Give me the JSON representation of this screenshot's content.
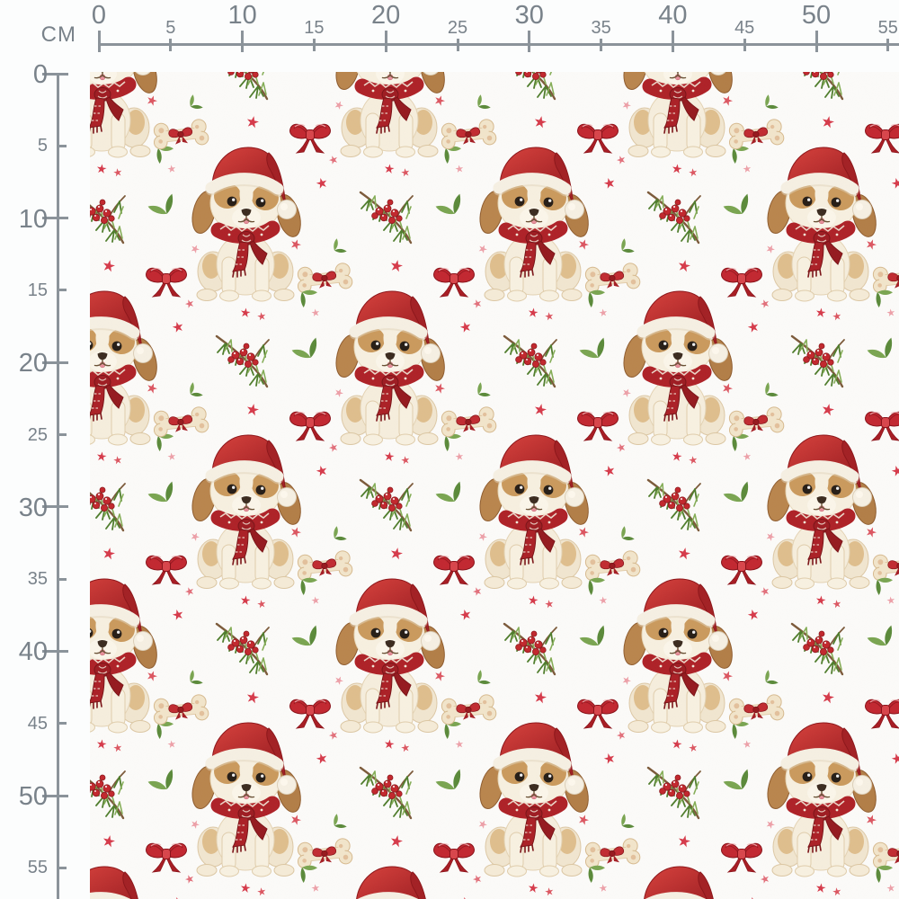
{
  "ruler": {
    "unit_label": "CM",
    "horizontal": {
      "labels": [
        0,
        5,
        10,
        15,
        20,
        25,
        30,
        35,
        40,
        45,
        50,
        55
      ]
    },
    "vertical": {
      "labels": [
        0,
        5,
        10,
        15,
        20,
        25,
        30,
        35,
        40,
        45,
        50,
        55
      ]
    }
  },
  "pattern": {
    "theme": "Christmas puppies with santa hats on white fabric",
    "motifs": [
      "christmas-puppy-santa-hat-red-scarf",
      "red-ribbon-bow",
      "dog-bone-with-red-bow",
      "pine-branch-with-red-berries",
      "green-leaf-sprig",
      "red-star",
      "pink-star"
    ],
    "colors": {
      "fabric_background": "#fcfbf9",
      "ruler_line": "#8b939a",
      "ruler_text": "#79828a",
      "santa_red": "#c22730",
      "dark_red": "#8a1118",
      "scarf_red": "#ae2127",
      "berry_red": "#c2272d",
      "pine_green": "#4f7d2c",
      "light_green": "#84ad56",
      "puppy_cream": "#f6eedd",
      "puppy_tan": "#c79556",
      "ear_brown": "#b9854d",
      "bone_cream": "#f2e5cb",
      "star_red": "#d63a4a",
      "star_pink": "#eda0a8"
    }
  }
}
